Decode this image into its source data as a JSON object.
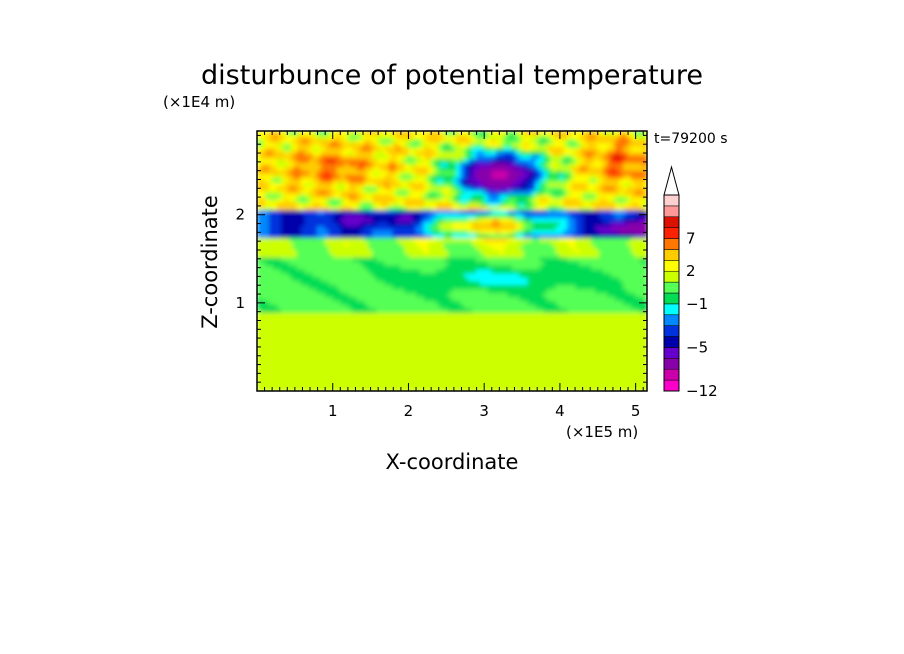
{
  "chart_data": {
    "type": "heatmap",
    "title": "disturbunce of potential temperature",
    "xlabel": "X-coordinate",
    "ylabel": "Z-coordinate",
    "x_unit": "(×1E5 m)",
    "y_unit": "(×1E4 m)",
    "time_label": "t=79200 s",
    "xlim": [
      0,
      5.15
    ],
    "ylim": [
      0,
      2.95
    ],
    "xticks": [
      "1",
      "2",
      "3",
      "4",
      "5"
    ],
    "xtick_values": [
      1,
      2,
      3,
      4,
      5
    ],
    "yticks": [
      "1",
      "2"
    ],
    "ytick_values": [
      1,
      2
    ],
    "colorbar": {
      "extend_max": true,
      "labels": [
        "7",
        "2",
        "−1",
        "−5",
        "−12"
      ],
      "label_levels": [
        7,
        2,
        -1,
        -5,
        -12
      ],
      "levels": [
        -12,
        -10,
        -8,
        -6,
        -5,
        -4,
        -3,
        -2,
        -1,
        0,
        1,
        2,
        3,
        5,
        7,
        8,
        9,
        10
      ],
      "colors": [
        "#ff00cc",
        "#cc00aa",
        "#8800aa",
        "#6600cc",
        "#0000aa",
        "#0033dd",
        "#0088ff",
        "#00ffff",
        "#00dd55",
        "#55ff55",
        "#ccff00",
        "#ffff00",
        "#ffcc00",
        "#ff7700",
        "#ff2200",
        "#dd1100",
        "#ff9999",
        "#ffd0d0"
      ]
    },
    "field_regions": [
      {
        "x": [
          0.0,
          5.15
        ],
        "z": [
          0.0,
          0.9
        ],
        "range": [
          1,
          2
        ],
        "note": "lower layer, mostly yellow"
      },
      {
        "x": [
          0.0,
          5.15
        ],
        "z": [
          0.9,
          1.5
        ],
        "range": [
          -1,
          1
        ],
        "note": "mid layer, green"
      },
      {
        "x": [
          2.0,
          4.5
        ],
        "z": [
          1.1,
          1.45
        ],
        "range": [
          -2,
          -1
        ],
        "note": "cyan band"
      },
      {
        "x": [
          0.0,
          5.15
        ],
        "z": [
          1.5,
          1.75
        ],
        "range": [
          0,
          2
        ],
        "note": "green-yellow band"
      },
      {
        "x": [
          0.0,
          2.2
        ],
        "z": [
          1.75,
          2.0
        ],
        "range": [
          -5,
          -3
        ],
        "note": "blue band"
      },
      {
        "x": [
          2.3,
          3.8
        ],
        "z": [
          1.75,
          2.05
        ],
        "range": [
          5,
          8
        ],
        "note": "warm anomaly, red core"
      },
      {
        "x": [
          2.4,
          3.9
        ],
        "z": [
          2.1,
          2.8
        ],
        "range": [
          -8,
          -5
        ],
        "note": "cold anomaly, purple core"
      },
      {
        "x": [
          0.0,
          1.6
        ],
        "z": [
          2.2,
          2.8
        ],
        "range": [
          2,
          8
        ],
        "note": "warm upper-left region"
      },
      {
        "x": [
          4.4,
          5.15
        ],
        "z": [
          2.2,
          2.8
        ],
        "range": [
          2,
          9
        ],
        "note": "warm upper-right region"
      },
      {
        "x": [
          4.5,
          5.15
        ],
        "z": [
          1.75,
          2.0
        ],
        "range": [
          -5,
          -3
        ],
        "note": "blue band right"
      }
    ]
  }
}
